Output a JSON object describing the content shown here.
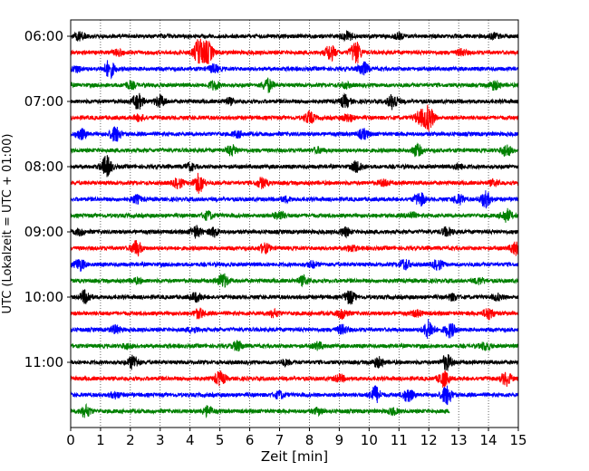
{
  "chart_data": {
    "type": "line",
    "title": "",
    "xlabel": "Zeit  [min]",
    "ylabel": "UTC (Lokalzeit = UTC + 01:00)",
    "xlim": [
      0,
      15
    ],
    "x_ticks": [
      0,
      1,
      2,
      3,
      4,
      5,
      6,
      7,
      8,
      9,
      10,
      11,
      12,
      13,
      14,
      15
    ],
    "y_tick_labels": [
      "06:00",
      "07:00",
      "08:00",
      "09:00",
      "10:00",
      "11:00"
    ],
    "grid": "vertical dotted",
    "line_colors": [
      "#000000",
      "#ff0000",
      "#0000ff",
      "#008000"
    ],
    "series": [
      {
        "start": "06:00",
        "x_end": 15,
        "color": "#000000"
      },
      {
        "start": "06:15",
        "x_end": 15,
        "color": "#ff0000"
      },
      {
        "start": "06:30",
        "x_end": 15,
        "color": "#0000ff"
      },
      {
        "start": "06:45",
        "x_end": 15,
        "color": "#008000"
      },
      {
        "start": "07:00",
        "x_end": 15,
        "color": "#000000"
      },
      {
        "start": "07:15",
        "x_end": 15,
        "color": "#ff0000"
      },
      {
        "start": "07:30",
        "x_end": 15,
        "color": "#0000ff"
      },
      {
        "start": "07:45",
        "x_end": 15,
        "color": "#008000"
      },
      {
        "start": "08:00",
        "x_end": 15,
        "color": "#000000"
      },
      {
        "start": "08:15",
        "x_end": 15,
        "color": "#ff0000"
      },
      {
        "start": "08:30",
        "x_end": 15,
        "color": "#0000ff"
      },
      {
        "start": "08:45",
        "x_end": 15,
        "color": "#008000"
      },
      {
        "start": "09:00",
        "x_end": 15,
        "color": "#000000"
      },
      {
        "start": "09:15",
        "x_end": 15,
        "color": "#ff0000"
      },
      {
        "start": "09:30",
        "x_end": 15,
        "color": "#0000ff"
      },
      {
        "start": "09:45",
        "x_end": 15,
        "color": "#008000"
      },
      {
        "start": "10:00",
        "x_end": 15,
        "color": "#000000"
      },
      {
        "start": "10:15",
        "x_end": 15,
        "color": "#ff0000"
      },
      {
        "start": "10:30",
        "x_end": 15,
        "color": "#0000ff"
      },
      {
        "start": "10:45",
        "x_end": 15,
        "color": "#008000"
      },
      {
        "start": "11:00",
        "x_end": 15,
        "color": "#000000"
      },
      {
        "start": "11:15",
        "x_end": 15,
        "color": "#ff0000"
      },
      {
        "start": "11:30",
        "x_end": 15,
        "color": "#0000ff"
      },
      {
        "start": "11:45",
        "x_end": 12.7,
        "color": "#008000"
      }
    ],
    "bursts": [
      [
        [
          0.3,
          0.9
        ],
        [
          9.3,
          0.9
        ],
        [
          11.0,
          0.5
        ],
        [
          14.2,
          0.5
        ]
      ],
      [
        [
          4.3,
          2.8
        ],
        [
          4.6,
          2.2
        ],
        [
          8.7,
          1.6
        ],
        [
          9.55,
          2.4
        ],
        [
          1.6,
          0.6
        ],
        [
          13.1,
          0.6
        ]
      ],
      [
        [
          1.3,
          1.8
        ],
        [
          9.8,
          1.4
        ],
        [
          4.8,
          0.8
        ],
        [
          0.2,
          0.6
        ]
      ],
      [
        [
          6.6,
          1.4
        ],
        [
          4.8,
          0.9
        ],
        [
          2.0,
          0.7
        ],
        [
          14.2,
          0.9
        ],
        [
          9.2,
          0.5
        ]
      ],
      [
        [
          2.25,
          1.6
        ],
        [
          3.0,
          1.2
        ],
        [
          9.2,
          1.2
        ],
        [
          10.8,
          1.6
        ],
        [
          5.3,
          0.6
        ]
      ],
      [
        [
          12.0,
          2.6
        ],
        [
          11.7,
          1.4
        ],
        [
          8.0,
          1.2
        ],
        [
          9.3,
          0.8
        ],
        [
          2.3,
          0.6
        ]
      ],
      [
        [
          1.5,
          1.6
        ],
        [
          0.35,
          1.0
        ],
        [
          9.8,
          1.0
        ],
        [
          5.6,
          0.6
        ]
      ],
      [
        [
          11.6,
          1.2
        ],
        [
          14.6,
          1.2
        ],
        [
          5.4,
          1.0
        ],
        [
          8.3,
          0.5
        ]
      ],
      [
        [
          1.2,
          2.2
        ],
        [
          9.6,
          1.2
        ],
        [
          4.0,
          0.7
        ],
        [
          13.0,
          0.5
        ]
      ],
      [
        [
          4.3,
          2.0
        ],
        [
          3.6,
          1.0
        ],
        [
          6.4,
          1.0
        ],
        [
          10.5,
          0.6
        ],
        [
          14.2,
          0.6
        ]
      ],
      [
        [
          11.7,
          1.4
        ],
        [
          13.9,
          1.6
        ],
        [
          13.0,
          1.0
        ],
        [
          2.2,
          0.8
        ],
        [
          7.2,
          0.5
        ]
      ],
      [
        [
          14.6,
          1.3
        ],
        [
          4.6,
          0.8
        ],
        [
          7.0,
          0.9
        ],
        [
          11.4,
          0.6
        ]
      ],
      [
        [
          4.2,
          1.2
        ],
        [
          4.8,
          0.9
        ],
        [
          9.2,
          0.8
        ],
        [
          12.6,
          0.9
        ],
        [
          0.3,
          0.6
        ]
      ],
      [
        [
          2.2,
          1.6
        ],
        [
          6.5,
          1.0
        ],
        [
          14.9,
          1.3
        ],
        [
          9.4,
          0.6
        ]
      ],
      [
        [
          0.3,
          1.2
        ],
        [
          11.2,
          1.1
        ],
        [
          12.3,
          1.0
        ],
        [
          8.1,
          0.6
        ]
      ],
      [
        [
          5.1,
          1.4
        ],
        [
          7.8,
          0.9
        ],
        [
          13.7,
          0.6
        ],
        [
          2.2,
          0.5
        ]
      ],
      [
        [
          0.5,
          1.3
        ],
        [
          9.35,
          1.4
        ],
        [
          4.2,
          0.9
        ],
        [
          12.8,
          0.6
        ],
        [
          14.3,
          0.6
        ]
      ],
      [
        [
          4.3,
          1.0
        ],
        [
          9.1,
          1.0
        ],
        [
          14.0,
          1.2
        ],
        [
          6.8,
          0.7
        ],
        [
          11.6,
          0.6
        ]
      ],
      [
        [
          12.0,
          2.0
        ],
        [
          12.7,
          1.5
        ],
        [
          1.5,
          0.8
        ],
        [
          9.1,
          0.9
        ],
        [
          4.1,
          0.5
        ]
      ],
      [
        [
          5.6,
          1.0
        ],
        [
          8.3,
          0.7
        ],
        [
          13.9,
          0.8
        ],
        [
          1.9,
          0.5
        ]
      ],
      [
        [
          2.1,
          1.5
        ],
        [
          12.6,
          1.6
        ],
        [
          10.3,
          1.0
        ],
        [
          7.2,
          0.5
        ]
      ],
      [
        [
          5.0,
          1.4
        ],
        [
          12.5,
          1.6
        ],
        [
          14.6,
          1.4
        ],
        [
          9.0,
          0.7
        ]
      ],
      [
        [
          10.2,
          1.8
        ],
        [
          11.3,
          1.4
        ],
        [
          12.6,
          2.0
        ],
        [
          7.0,
          0.7
        ],
        [
          1.5,
          0.6
        ]
      ],
      [
        [
          0.5,
          1.2
        ],
        [
          4.6,
          1.0
        ],
        [
          8.3,
          0.6
        ],
        [
          10.8,
          0.6
        ]
      ]
    ]
  }
}
